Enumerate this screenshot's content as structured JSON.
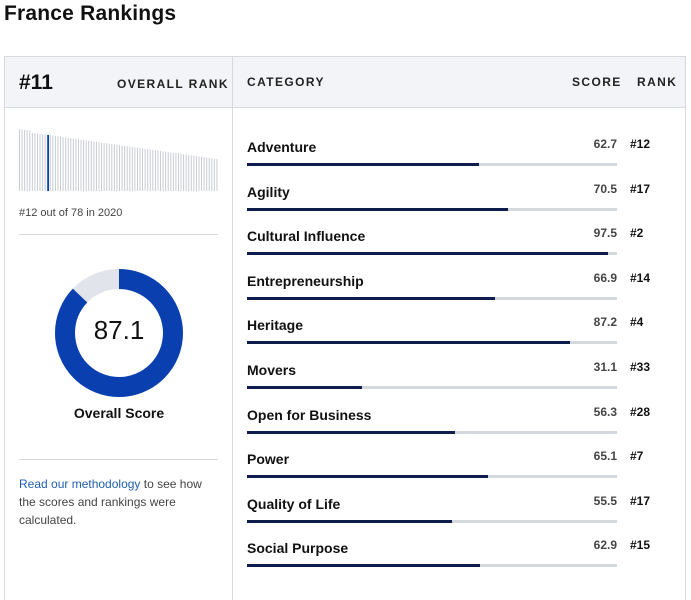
{
  "page": {
    "title": "France Rankings"
  },
  "header": {
    "rank_number": "#11",
    "overall_rank_label": "OVERALL RANK",
    "category_label": "CATEGORY",
    "score_label": "SCORE",
    "rank_label": "RANK"
  },
  "left_panel": {
    "rank_of_text": "#12 out of 78 in 2020",
    "rank_history": {
      "total": 78,
      "highlight_position": 12
    },
    "overall_score": {
      "value": "87.1",
      "fraction": 0.871,
      "label": "Overall Score"
    },
    "methodology": {
      "link_text": "Read our methodology",
      "rest_text": " to see how the scores and rankings were calculated."
    },
    "colors": {
      "accent": "#0a3fb0",
      "track": "#e1e4ea",
      "bar_gray": "#c8ccd3"
    }
  },
  "categories": [
    {
      "name": "Adventure",
      "score": "62.7",
      "fraction": 0.627,
      "rank": "#12"
    },
    {
      "name": "Agility",
      "score": "70.5",
      "fraction": 0.705,
      "rank": "#17"
    },
    {
      "name": "Cultural Influence",
      "score": "97.5",
      "fraction": 0.975,
      "rank": "#2"
    },
    {
      "name": "Entrepreneurship",
      "score": "66.9",
      "fraction": 0.669,
      "rank": "#14"
    },
    {
      "name": "Heritage",
      "score": "87.2",
      "fraction": 0.872,
      "rank": "#4"
    },
    {
      "name": "Movers",
      "score": "31.1",
      "fraction": 0.311,
      "rank": "#33"
    },
    {
      "name": "Open for Business",
      "score": "56.3",
      "fraction": 0.563,
      "rank": "#28"
    },
    {
      "name": "Power",
      "score": "65.1",
      "fraction": 0.651,
      "rank": "#7"
    },
    {
      "name": "Quality of Life",
      "score": "55.5",
      "fraction": 0.555,
      "rank": "#17"
    },
    {
      "name": "Social Purpose",
      "score": "62.9",
      "fraction": 0.629,
      "rank": "#15"
    }
  ]
}
